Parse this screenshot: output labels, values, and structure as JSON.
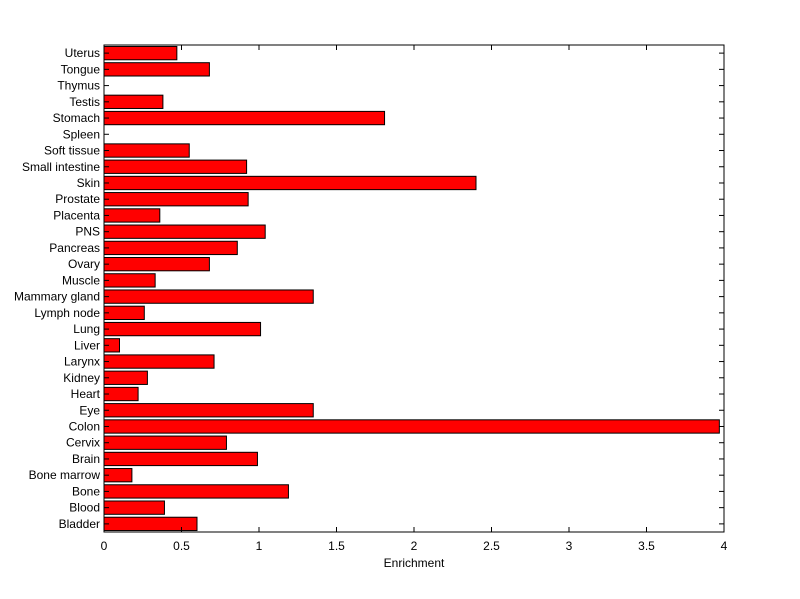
{
  "chart_data": {
    "type": "bar",
    "orientation": "horizontal",
    "categories": [
      "Bladder",
      "Blood",
      "Bone",
      "Bone marrow",
      "Brain",
      "Cervix",
      "Colon",
      "Eye",
      "Heart",
      "Kidney",
      "Larynx",
      "Liver",
      "Lung",
      "Lymph node",
      "Mammary gland",
      "Muscle",
      "Ovary",
      "Pancreas",
      "PNS",
      "Placenta",
      "Prostate",
      "Skin",
      "Small intestine",
      "Soft tissue",
      "Spleen",
      "Stomach",
      "Testis",
      "Thymus",
      "Tongue",
      "Uterus"
    ],
    "values": [
      0.6,
      0.39,
      1.19,
      0.18,
      0.99,
      0.79,
      3.97,
      1.35,
      0.22,
      0.28,
      0.71,
      0.1,
      1.01,
      0.26,
      1.35,
      0.33,
      0.68,
      0.86,
      1.04,
      0.36,
      0.93,
      2.4,
      0.92,
      0.55,
      0.0,
      1.81,
      0.38,
      0.0,
      0.68,
      0.47
    ],
    "title": "",
    "xlabel": "Enrichment",
    "ylabel": "",
    "xlim": [
      0,
      4
    ],
    "xticks": [
      "0",
      "0.5",
      "1",
      "1.5",
      "2",
      "2.5",
      "3",
      "3.5",
      "4"
    ],
    "grid": false,
    "colors": {
      "bar_fill": "#ff0000",
      "bar_edge": "#000000"
    }
  }
}
